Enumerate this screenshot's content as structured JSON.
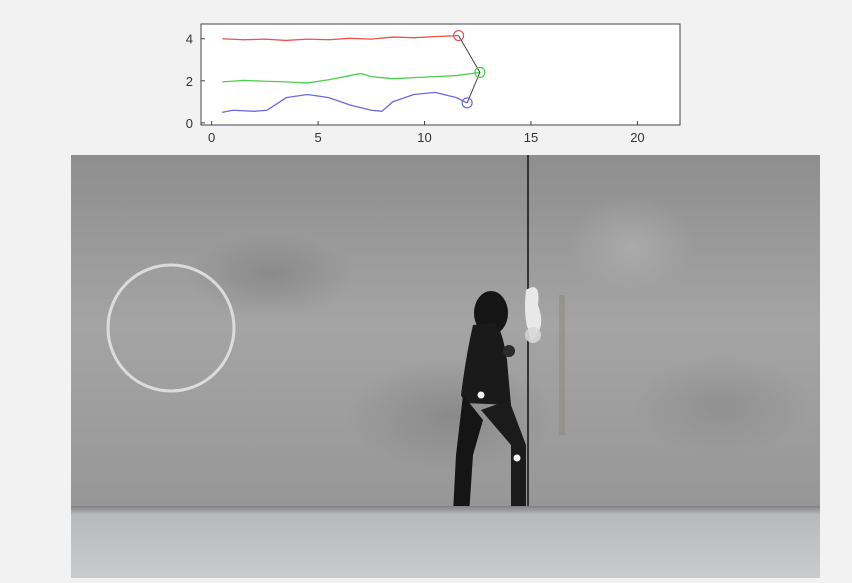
{
  "chart_data": {
    "type": "line",
    "xlim": [
      -0.5,
      22
    ],
    "ylim": [
      -0.1,
      4.7
    ],
    "x_ticks": [
      "0",
      "5",
      "10",
      "15",
      "20"
    ],
    "y_ticks": [
      "0",
      "2",
      "4"
    ],
    "grid": false,
    "series": [
      {
        "color": "#e8534e",
        "x": [
          0.5,
          1.5,
          2.5,
          3.5,
          4.5,
          5.5,
          6.5,
          7.5,
          8.5,
          9.5,
          10.5,
          11.6
        ],
        "y": [
          4.0,
          3.95,
          3.98,
          3.92,
          3.98,
          3.95,
          4.02,
          3.98,
          4.08,
          4.05,
          4.1,
          4.15
        ]
      },
      {
        "color": "#4cd04c",
        "x": [
          0.5,
          1.5,
          2.5,
          3.5,
          4.5,
          5.5,
          6.5,
          7.0,
          7.5,
          8.5,
          9.5,
          10.5,
          11.5,
          12.6
        ],
        "y": [
          1.95,
          2.02,
          1.98,
          1.95,
          1.9,
          2.05,
          2.25,
          2.35,
          2.2,
          2.1,
          2.15,
          2.2,
          2.25,
          2.4
        ]
      },
      {
        "color": "#6b6be0",
        "x": [
          0.5,
          1.0,
          2.0,
          2.6,
          3.5,
          4.5,
          5.5,
          6.5,
          7.5,
          8.0,
          8.5,
          9.5,
          10.5,
          11.5,
          12.0
        ],
        "y": [
          0.5,
          0.6,
          0.55,
          0.6,
          1.2,
          1.35,
          1.2,
          0.85,
          0.6,
          0.55,
          1.0,
          1.35,
          1.45,
          1.2,
          0.95
        ]
      }
    ],
    "markers": [
      {
        "color": "#e8534e",
        "x": 11.6,
        "y": 4.15
      },
      {
        "color": "#4cd04c",
        "x": 12.6,
        "y": 2.4
      },
      {
        "color": "#6b6be0",
        "x": 12.0,
        "y": 0.95
      }
    ],
    "connector": {
      "color": "#444444",
      "x": [
        11.6,
        12.6,
        12.0
      ],
      "y": [
        4.15,
        2.4,
        0.95
      ]
    },
    "cursor_x": 15
  }
}
